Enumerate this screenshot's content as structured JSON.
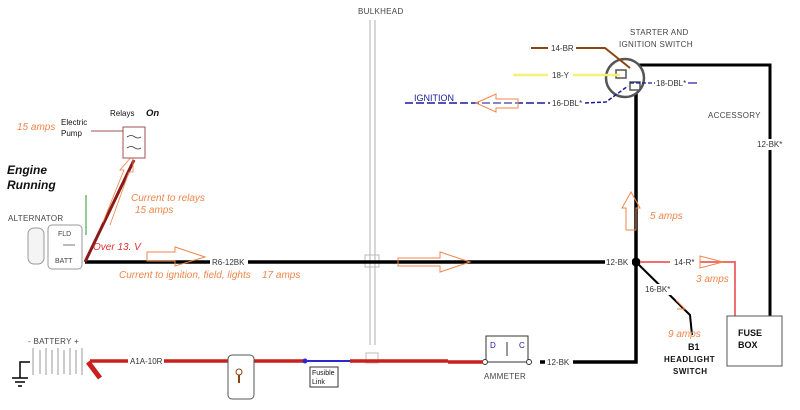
{
  "title_labels": {
    "bulkhead": "BULKHEAD",
    "starter_switch_line1": "STARTER AND",
    "starter_switch_line2": "IGNITION SWITCH",
    "accessory": "ACCESSORY",
    "ignition": "IGNITION",
    "engine_running_line1": "Engine",
    "engine_running_line2": "Running"
  },
  "components": {
    "alternator": "ALTERNATOR",
    "alt_fld": "FLD",
    "alt_batt": "BATT",
    "relays": "Relays",
    "relays_state": "On",
    "electric_pump_line1": "Electric",
    "electric_pump_line2": "Pump",
    "battery": "- BATTERY +",
    "fusible_link_line1": "Fusible",
    "fusible_link_line2": "Link",
    "ammeter": "AMMETER",
    "ammeter_d": "D",
    "ammeter_c": "C",
    "fuse_box_line1": "FUSE",
    "fuse_box_line2": "BOX",
    "headlight_b1": "B1",
    "headlight_line1": "HEADLIGHT",
    "headlight_line2": "SWITCH"
  },
  "wires": {
    "w14br": "14-BR",
    "w18y": "18-Y",
    "w18dbl": "18-DBL*",
    "w16dbl": "16-DBL*",
    "w12bk_acc": "12-BK*",
    "r6_12bk": "R6-12BK",
    "w12bk_junction": "12-BK",
    "w14r": "14-R*",
    "w16bk": "16-BK*",
    "w12bk_ammeter": "12-BK",
    "a1a_10r": "A1A-10R"
  },
  "annotations": {
    "pump_amps": "15 amps",
    "over_voltage": "Over 13. V",
    "current_to_relays": "Current to relays",
    "relays_amps": "15 amps",
    "current_to_ignition": "Current to ignition, field, lights",
    "ignition_amps": "17 amps",
    "switch_amps": "5 amps",
    "fuse_amps": "3 amps",
    "headlight_amps": "9 amps"
  },
  "colors": {
    "main_wire": "#000000",
    "battery_wire": "#c8201e",
    "relay_wire": "#8b1a1a",
    "ignition_wire": "#1a1a9a",
    "brown_wire": "#8b4513",
    "yellow_wire": "#f5f07a",
    "pink_wire": "#f07070",
    "annotation": "#f0854a"
  }
}
